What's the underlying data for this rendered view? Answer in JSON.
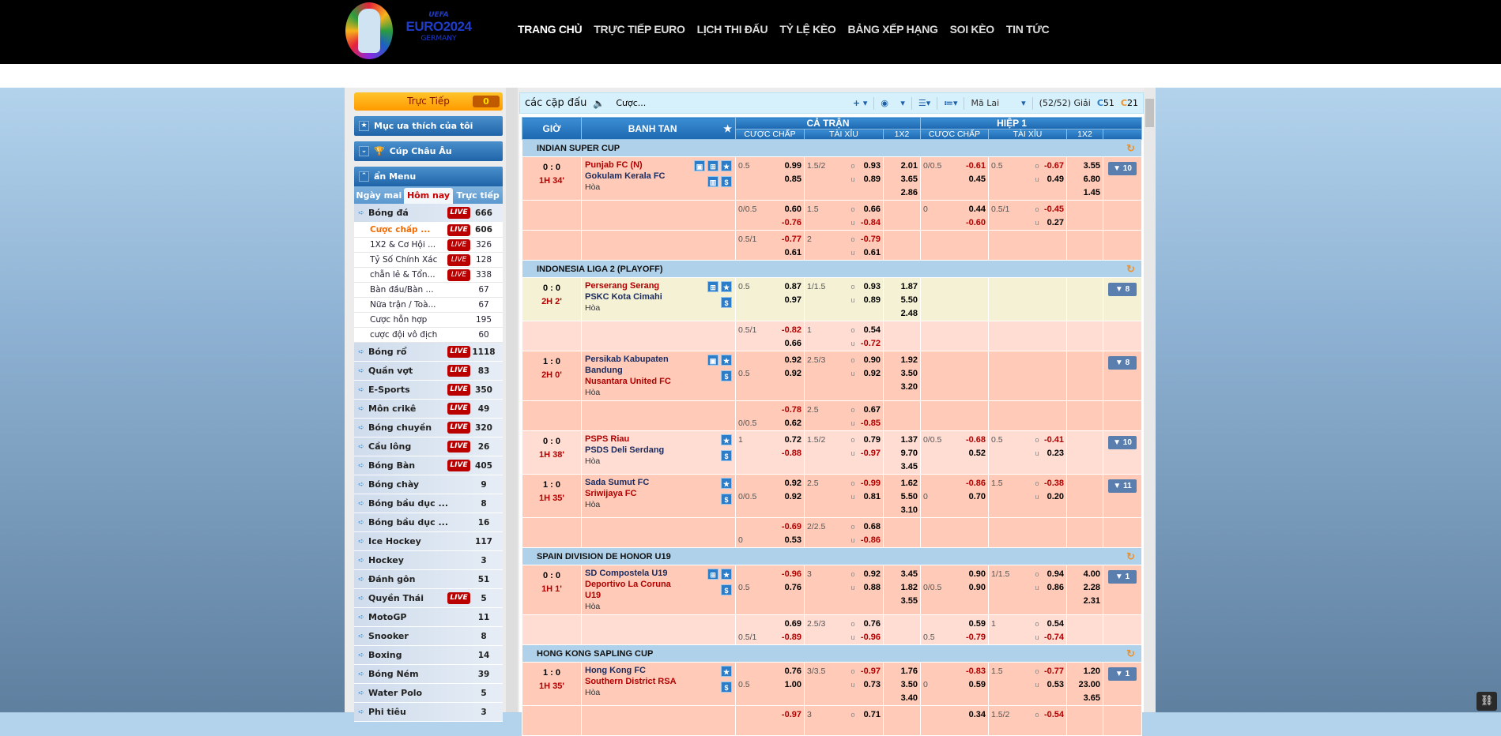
{
  "header": {
    "logo_text": "UEFA EURO2024 GERMANY",
    "brand": {
      "uefa": "UEFA",
      "euro": "EURO2024",
      "country": "GERMANY"
    },
    "nav": [
      "TRANG CHỦ",
      "TRỰC TIẾP EURO",
      "LỊCH THI ĐẤU",
      "TỶ LỆ KÈO",
      "BẢNG XẾP HẠNG",
      "SOI KÈO",
      "TIN TỨC"
    ]
  },
  "sidebar": {
    "live_label": "Trực Tiếp",
    "live_count": "0",
    "favorites": "Mục ưa thích của tôi",
    "euro_cup": "Cúp Châu Âu",
    "hide_menu": "ẩn Menu",
    "tabs": [
      "Ngày mai",
      "Hôm nay",
      "Trực tiếp"
    ],
    "active_tab": 1,
    "live_badge": "LIVE",
    "sports": [
      {
        "name": "Bóng đá",
        "live": true,
        "count": "666",
        "subs": [
          {
            "name": "Cược chấp ...",
            "live": true,
            "count": "606",
            "active": true
          },
          {
            "name": "1X2 & Cơ Hội ...",
            "live": true,
            "count": "326"
          },
          {
            "name": "Tỷ Số Chính Xác",
            "live": true,
            "count": "128"
          },
          {
            "name": "chẵn lẻ & Tổn...",
            "live": true,
            "count": "338"
          },
          {
            "name": "Bàn đầu/Bàn ...",
            "live": false,
            "count": "67"
          },
          {
            "name": "Nữa trận / Toà...",
            "live": false,
            "count": "67"
          },
          {
            "name": "Cược hỗn hợp",
            "live": false,
            "count": "195"
          },
          {
            "name": "cược đội vô địch",
            "live": false,
            "count": "60"
          }
        ]
      },
      {
        "name": "Bóng rổ",
        "live": true,
        "count": "1118"
      },
      {
        "name": "Quần vợt",
        "live": true,
        "count": "83"
      },
      {
        "name": "E-Sports",
        "live": true,
        "count": "350"
      },
      {
        "name": "Môn crikê",
        "live": true,
        "count": "49"
      },
      {
        "name": "Bóng chuyền",
        "live": true,
        "count": "320"
      },
      {
        "name": "Cầu lông",
        "live": true,
        "count": "26"
      },
      {
        "name": "Bóng Bàn",
        "live": true,
        "count": "405"
      },
      {
        "name": "Bóng chày",
        "live": false,
        "count": "9"
      },
      {
        "name": "Bóng bầu dục ...",
        "live": false,
        "count": "8"
      },
      {
        "name": "Bóng bầu dục ...",
        "live": false,
        "count": "16"
      },
      {
        "name": "Ice Hockey",
        "live": false,
        "count": "117"
      },
      {
        "name": "Hockey",
        "live": false,
        "count": "3"
      },
      {
        "name": "Đánh gôn",
        "live": false,
        "count": "51"
      },
      {
        "name": "Quyền Thái",
        "live": true,
        "count": "5"
      },
      {
        "name": "MotoGP",
        "live": false,
        "count": "11"
      },
      {
        "name": "Snooker",
        "live": false,
        "count": "8"
      },
      {
        "name": "Boxing",
        "live": false,
        "count": "14"
      },
      {
        "name": "Bóng Ném",
        "live": false,
        "count": "39"
      },
      {
        "name": "Water Polo",
        "live": false,
        "count": "5"
      },
      {
        "name": "Phi tiêu",
        "live": false,
        "count": "3"
      }
    ]
  },
  "toolbar": {
    "title": "các cặp đấu",
    "bet_type": "Cược...",
    "odds_type": "Mã Lai",
    "leagues_shown": "(52/52) Giải",
    "refresh_a": "51",
    "refresh_b": "21"
  },
  "table": {
    "headers": {
      "time": "GIỜ",
      "match": "BANH TAN",
      "full": "CẢ TRẬN",
      "half": "HIỆP 1",
      "hdp": "CƯỢC CHẤP",
      "ou": "TÀI XỈU",
      "x12": "1X2"
    },
    "over": "o",
    "under": "u",
    "leagues": [
      {
        "name": "INDIAN SUPER CUP",
        "matches": [
          {
            "score": "0 : 0",
            "time": "1H 34'",
            "home": "Punjab FC (N)",
            "away": "Gokulam Kerala FC",
            "fav": "home",
            "draw": "Hòa",
            "icons": [
              "tv",
              "field",
              "star",
              "|",
              "chart",
              "dollar"
            ],
            "more": "▼ 10",
            "bg": "a",
            "rows": [
              {
                "ft": {
                  "hdp": [
                    "0.5",
                    ""
                  ],
                  "hdp_odds": [
                    "0.99",
                    "0.85"
                  ],
                  "ou": [
                    "1.5/2",
                    ""
                  ],
                  "ou_odds": [
                    "0.93",
                    "0.89"
                  ],
                  "x12": [
                    "2.01",
                    "3.65",
                    "2.86"
                  ]
                },
                "h1": {
                  "hdp": [
                    "0/0.5",
                    ""
                  ],
                  "hdp_odds": [
                    "-0.61",
                    "0.45"
                  ],
                  "ou": [
                    "0.5",
                    ""
                  ],
                  "ou_odds": [
                    "-0.67",
                    "0.49"
                  ],
                  "x12": [
                    "3.55",
                    "6.80",
                    "1.45"
                  ]
                }
              },
              {
                "ft": {
                  "hdp": [
                    "0/0.5",
                    ""
                  ],
                  "hdp_odds": [
                    "0.60",
                    "-0.76"
                  ],
                  "ou": [
                    "1.5",
                    ""
                  ],
                  "ou_odds": [
                    "0.66",
                    "-0.84"
                  ]
                },
                "h1": {
                  "hdp": [
                    "0",
                    ""
                  ],
                  "hdp_odds": [
                    "0.44",
                    "-0.60"
                  ],
                  "ou": [
                    "0.5/1",
                    ""
                  ],
                  "ou_odds": [
                    "-0.45",
                    "0.27"
                  ]
                }
              },
              {
                "ft": {
                  "hdp": [
                    "0.5/1",
                    ""
                  ],
                  "hdp_odds": [
                    "-0.77",
                    "0.61"
                  ],
                  "ou": [
                    "2",
                    ""
                  ],
                  "ou_odds": [
                    "-0.79",
                    "0.61"
                  ]
                }
              }
            ]
          }
        ]
      },
      {
        "name": "INDONESIA LIGA 2 (PLAYOFF)",
        "matches": [
          {
            "score": "0 : 0",
            "time": "2H 2'",
            "home": "Perserang Serang",
            "away": "PSKC Kota Cimahi",
            "fav": "home",
            "draw": "Hòa",
            "icons": [
              "field",
              "star",
              "|",
              "dollar"
            ],
            "more": "▼ 8",
            "bg": "hl",
            "rows": [
              {
                "ft": {
                  "hdp": [
                    "0.5",
                    ""
                  ],
                  "hdp_odds": [
                    "0.87",
                    "0.97"
                  ],
                  "ou": [
                    "1/1.5",
                    ""
                  ],
                  "ou_odds": [
                    "0.93",
                    "0.89"
                  ],
                  "x12": [
                    "1.87",
                    "5.50",
                    "2.48"
                  ]
                }
              },
              {
                "ft": {
                  "hdp": [
                    "0.5/1",
                    ""
                  ],
                  "hdp_odds": [
                    "-0.82",
                    "0.66"
                  ],
                  "ou": [
                    "1",
                    ""
                  ],
                  "ou_odds": [
                    "0.54",
                    "-0.72"
                  ]
                },
                "bg": "b"
              }
            ]
          },
          {
            "score": "1 : 0",
            "time": "2H 0'",
            "home": "Persikab Kabupaten Bandung",
            "away": "Nusantara United FC",
            "fav": "away",
            "draw": "Hòa",
            "icons": [
              "tv",
              "star",
              "|",
              "dollar"
            ],
            "more": "▼ 8",
            "bg": "a",
            "rows": [
              {
                "ft": {
                  "hdp": [
                    "",
                    "0.5"
                  ],
                  "hdp_odds": [
                    "0.92",
                    "0.92"
                  ],
                  "ou": [
                    "2.5/3",
                    ""
                  ],
                  "ou_odds": [
                    "0.90",
                    "0.92"
                  ],
                  "x12": [
                    "1.92",
                    "3.50",
                    "3.20"
                  ]
                }
              },
              {
                "ft": {
                  "hdp": [
                    "",
                    "0/0.5"
                  ],
                  "hdp_odds": [
                    "-0.78",
                    "0.62"
                  ],
                  "ou": [
                    "2.5",
                    ""
                  ],
                  "ou_odds": [
                    "0.67",
                    "-0.85"
                  ]
                }
              }
            ]
          },
          {
            "score": "0 : 0",
            "time": "1H 38'",
            "home": "PSPS Riau",
            "away": "PSDS Deli Serdang",
            "fav": "home",
            "draw": "Hòa",
            "icons": [
              "star",
              "|",
              "dollar"
            ],
            "more": "▼ 10",
            "bg": "b",
            "rows": [
              {
                "ft": {
                  "hdp": [
                    "1",
                    ""
                  ],
                  "hdp_odds": [
                    "0.72",
                    "-0.88"
                  ],
                  "ou": [
                    "1.5/2",
                    ""
                  ],
                  "ou_odds": [
                    "0.79",
                    "-0.97"
                  ],
                  "x12": [
                    "1.37",
                    "9.70",
                    "3.45"
                  ]
                },
                "h1": {
                  "hdp": [
                    "0/0.5",
                    ""
                  ],
                  "hdp_odds": [
                    "-0.68",
                    "0.52"
                  ],
                  "ou": [
                    "0.5",
                    ""
                  ],
                  "ou_odds": [
                    "-0.41",
                    "0.23"
                  ]
                }
              }
            ]
          },
          {
            "score": "1 : 0",
            "time": "1H 35'",
            "home": "Sada Sumut FC",
            "away": "Sriwijaya FC",
            "fav": "away",
            "draw": "Hòa",
            "icons": [
              "star",
              "|",
              "dollar"
            ],
            "more": "▼ 11",
            "bg": "a",
            "rows": [
              {
                "ft": {
                  "hdp": [
                    "",
                    "0/0.5"
                  ],
                  "hdp_odds": [
                    "0.92",
                    "0.92"
                  ],
                  "ou": [
                    "2.5",
                    ""
                  ],
                  "ou_odds": [
                    "-0.99",
                    "0.81"
                  ],
                  "x12": [
                    "1.62",
                    "5.50",
                    "3.10"
                  ]
                },
                "h1": {
                  "hdp": [
                    "",
                    "0"
                  ],
                  "hdp_odds": [
                    "-0.86",
                    "0.70"
                  ],
                  "ou": [
                    "1.5",
                    ""
                  ],
                  "ou_odds": [
                    "-0.38",
                    "0.20"
                  ]
                }
              },
              {
                "ft": {
                  "hdp": [
                    "",
                    "0"
                  ],
                  "hdp_odds": [
                    "-0.69",
                    "0.53"
                  ],
                  "ou": [
                    "2/2.5",
                    ""
                  ],
                  "ou_odds": [
                    "0.68",
                    "-0.86"
                  ]
                }
              }
            ]
          }
        ]
      },
      {
        "name": "SPAIN DIVISION DE HONOR U19",
        "matches": [
          {
            "score": "0 : 0",
            "time": "1H 1'",
            "home": "SD Compostela U19",
            "away": "Deportivo La Coruna U19",
            "fav": "away",
            "draw": "Hòa",
            "icons": [
              "field",
              "star",
              "|",
              "dollar"
            ],
            "more": "▼ 1",
            "bg": "a",
            "rows": [
              {
                "ft": {
                  "hdp": [
                    "",
                    "0.5"
                  ],
                  "hdp_odds": [
                    "-0.96",
                    "0.76"
                  ],
                  "ou": [
                    "3",
                    ""
                  ],
                  "ou_odds": [
                    "0.92",
                    "0.88"
                  ],
                  "x12": [
                    "3.45",
                    "1.82",
                    "3.55"
                  ]
                },
                "h1": {
                  "hdp": [
                    "",
                    "0/0.5"
                  ],
                  "hdp_odds": [
                    "0.90",
                    "0.90"
                  ],
                  "ou": [
                    "1/1.5",
                    ""
                  ],
                  "ou_odds": [
                    "0.94",
                    "0.86"
                  ],
                  "x12": [
                    "4.00",
                    "2.28",
                    "2.31"
                  ]
                }
              },
              {
                "ft": {
                  "hdp": [
                    "",
                    "0.5/1"
                  ],
                  "hdp_odds": [
                    "0.69",
                    "-0.89"
                  ],
                  "ou": [
                    "2.5/3",
                    ""
                  ],
                  "ou_odds": [
                    "0.76",
                    "-0.96"
                  ]
                },
                "h1": {
                  "hdp": [
                    "",
                    "0.5"
                  ],
                  "hdp_odds": [
                    "0.59",
                    "-0.79"
                  ],
                  "ou": [
                    "1",
                    ""
                  ],
                  "ou_odds": [
                    "0.54",
                    "-0.74"
                  ]
                },
                "bg": "b"
              }
            ]
          }
        ]
      },
      {
        "name": "HONG KONG SAPLING CUP",
        "matches": [
          {
            "score": "1 : 0",
            "time": "1H 35'",
            "home": "Hong Kong FC",
            "away": "Southern District RSA",
            "fav": "away",
            "draw": "Hòa",
            "icons": [
              "star",
              "|",
              "dollar"
            ],
            "more": "▼ 1",
            "bg": "a",
            "rows": [
              {
                "ft": {
                  "hdp": [
                    "",
                    "0.5"
                  ],
                  "hdp_odds": [
                    "0.76",
                    "1.00"
                  ],
                  "ou": [
                    "3/3.5",
                    ""
                  ],
                  "ou_odds": [
                    "-0.97",
                    "0.73"
                  ],
                  "x12": [
                    "1.76",
                    "3.50",
                    "3.40"
                  ]
                },
                "h1": {
                  "hdp": [
                    "",
                    "0"
                  ],
                  "hdp_odds": [
                    "-0.83",
                    "0.59"
                  ],
                  "ou": [
                    "1.5",
                    ""
                  ],
                  "ou_odds": [
                    "-0.77",
                    "0.53"
                  ],
                  "x12": [
                    "1.20",
                    "23.00",
                    "3.65"
                  ]
                }
              },
              {
                "ft": {
                  "hdp": [
                    "",
                    ""
                  ],
                  "hdp_odds": [
                    "-0.97",
                    ""
                  ],
                  "ou": [
                    "3",
                    ""
                  ],
                  "ou_odds": [
                    "0.71",
                    ""
                  ]
                },
                "h1": {
                  "hdp": [
                    "",
                    ""
                  ],
                  "hdp_odds": [
                    "0.34",
                    ""
                  ],
                  "ou": [
                    "1.5/2",
                    ""
                  ],
                  "ou_odds": [
                    "-0.54",
                    ""
                  ]
                }
              }
            ]
          }
        ]
      }
    ]
  },
  "colors": {
    "header_bg": "#000000",
    "table_header": "#1d68b0",
    "league_row": "#b0d1ea",
    "match_row": "#ffcbb8",
    "sub_row": "#ffddd3",
    "highlight_row": "#f5f1d4",
    "favorite_team": "#b00000",
    "live_badge": "#bb0000",
    "live_button": "#ff9a00"
  }
}
